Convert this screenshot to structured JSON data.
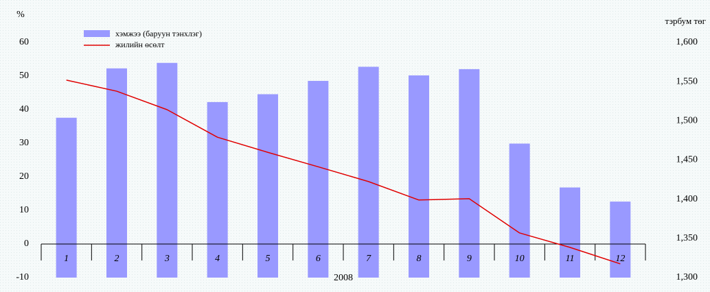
{
  "chart_data": {
    "type": "bar-line",
    "y_axis_label": "%",
    "y2_axis_label": "тэрбум төг",
    "x_axis_label": "2008",
    "categories": [
      "1",
      "2",
      "3",
      "4",
      "5",
      "6",
      "7",
      "8",
      "9",
      "10",
      "11",
      "12"
    ],
    "series": [
      {
        "name": "хэмжээ (баруун тэнхлэг)",
        "type": "bar",
        "axis": "y2",
        "color": "#9999ff",
        "values": [
          1504,
          1567,
          1574,
          1524,
          1534,
          1551,
          1569,
          1558,
          1566,
          1471,
          1415,
          1397
        ]
      },
      {
        "name": "жилийн өсөлт",
        "type": "line",
        "axis": "y",
        "color": "#e00000",
        "values": [
          48.8,
          45.5,
          40.0,
          31.8,
          27.3,
          23.0,
          18.6,
          13.1,
          13.5,
          3.3,
          -1.0,
          -5.9
        ]
      }
    ],
    "ylim": [
      -10,
      60
    ],
    "yticks": [
      -10,
      0,
      10,
      20,
      30,
      40,
      50,
      60
    ],
    "y2lim": [
      1300,
      1600
    ],
    "y2ticks": [
      {
        "value": 1300,
        "label": "1,300"
      },
      {
        "value": 1350,
        "label": "1,350"
      },
      {
        "value": 1400,
        "label": "1,400"
      },
      {
        "value": 1450,
        "label": "1,450"
      },
      {
        "value": 1500,
        "label": "1,500"
      },
      {
        "value": 1550,
        "label": "1,550"
      },
      {
        "value": 1600,
        "label": "1,600"
      }
    ],
    "legend": "top-left"
  }
}
